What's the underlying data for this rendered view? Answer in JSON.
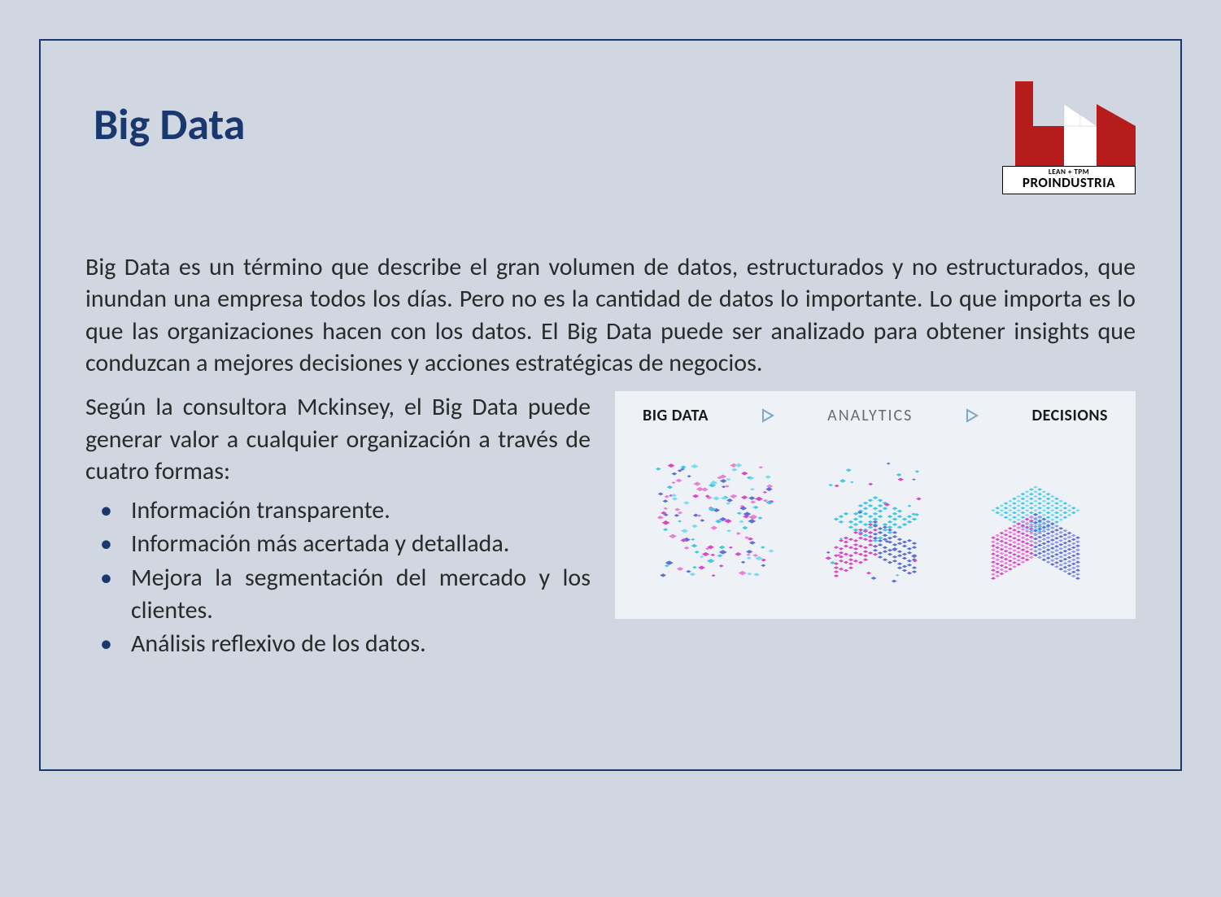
{
  "title": "Big Data",
  "logo": {
    "subtitle": "LEAN + TPM",
    "name": "PROINDUSTRIA",
    "colors": {
      "red": "#b71c1c",
      "white": "#ffffff",
      "border": "#000000"
    }
  },
  "paragraph": "Big Data es un término que describe el gran volumen de datos, estructurados y no estructurados, que inundan una empresa todos los días. Pero no es la cantidad de datos lo importante. Lo que importa es lo que las organizaciones hacen con los datos. El Big Data puede ser analizado para obtener insights que conduzcan a mejores decisiones y acciones estratégicas de negocios.",
  "subparagraph": "Según la consultora Mckinsey, el Big Data puede generar valor a cualquier organización a través de cuatro formas:",
  "bullets": [
    "Información transparente.",
    "Información más acertada y detallada.",
    "Mejora la segmentación del mercado y los clientes.",
    "Análisis reflexivo de los datos."
  ],
  "diagram": {
    "background": "#eef1f5",
    "labels": [
      "BIG DATA",
      "ANALYTICS",
      "DECISIONS"
    ],
    "arrow_color": "#7aa8c9",
    "cube_colors": {
      "cyan": "#3fc8e8",
      "magenta": "#d946c8",
      "blue": "#5b6fd8",
      "cyan_light": "#7edcf0",
      "magenta_light": "#e97fd8",
      "blue_light": "#8a9ae8"
    }
  },
  "colors": {
    "page_bg": "#d0d7e0",
    "slide_border": "#1a3870",
    "title_color": "#1a3870",
    "text_color": "#2a2a2a",
    "bullet_color": "#1a3870"
  }
}
